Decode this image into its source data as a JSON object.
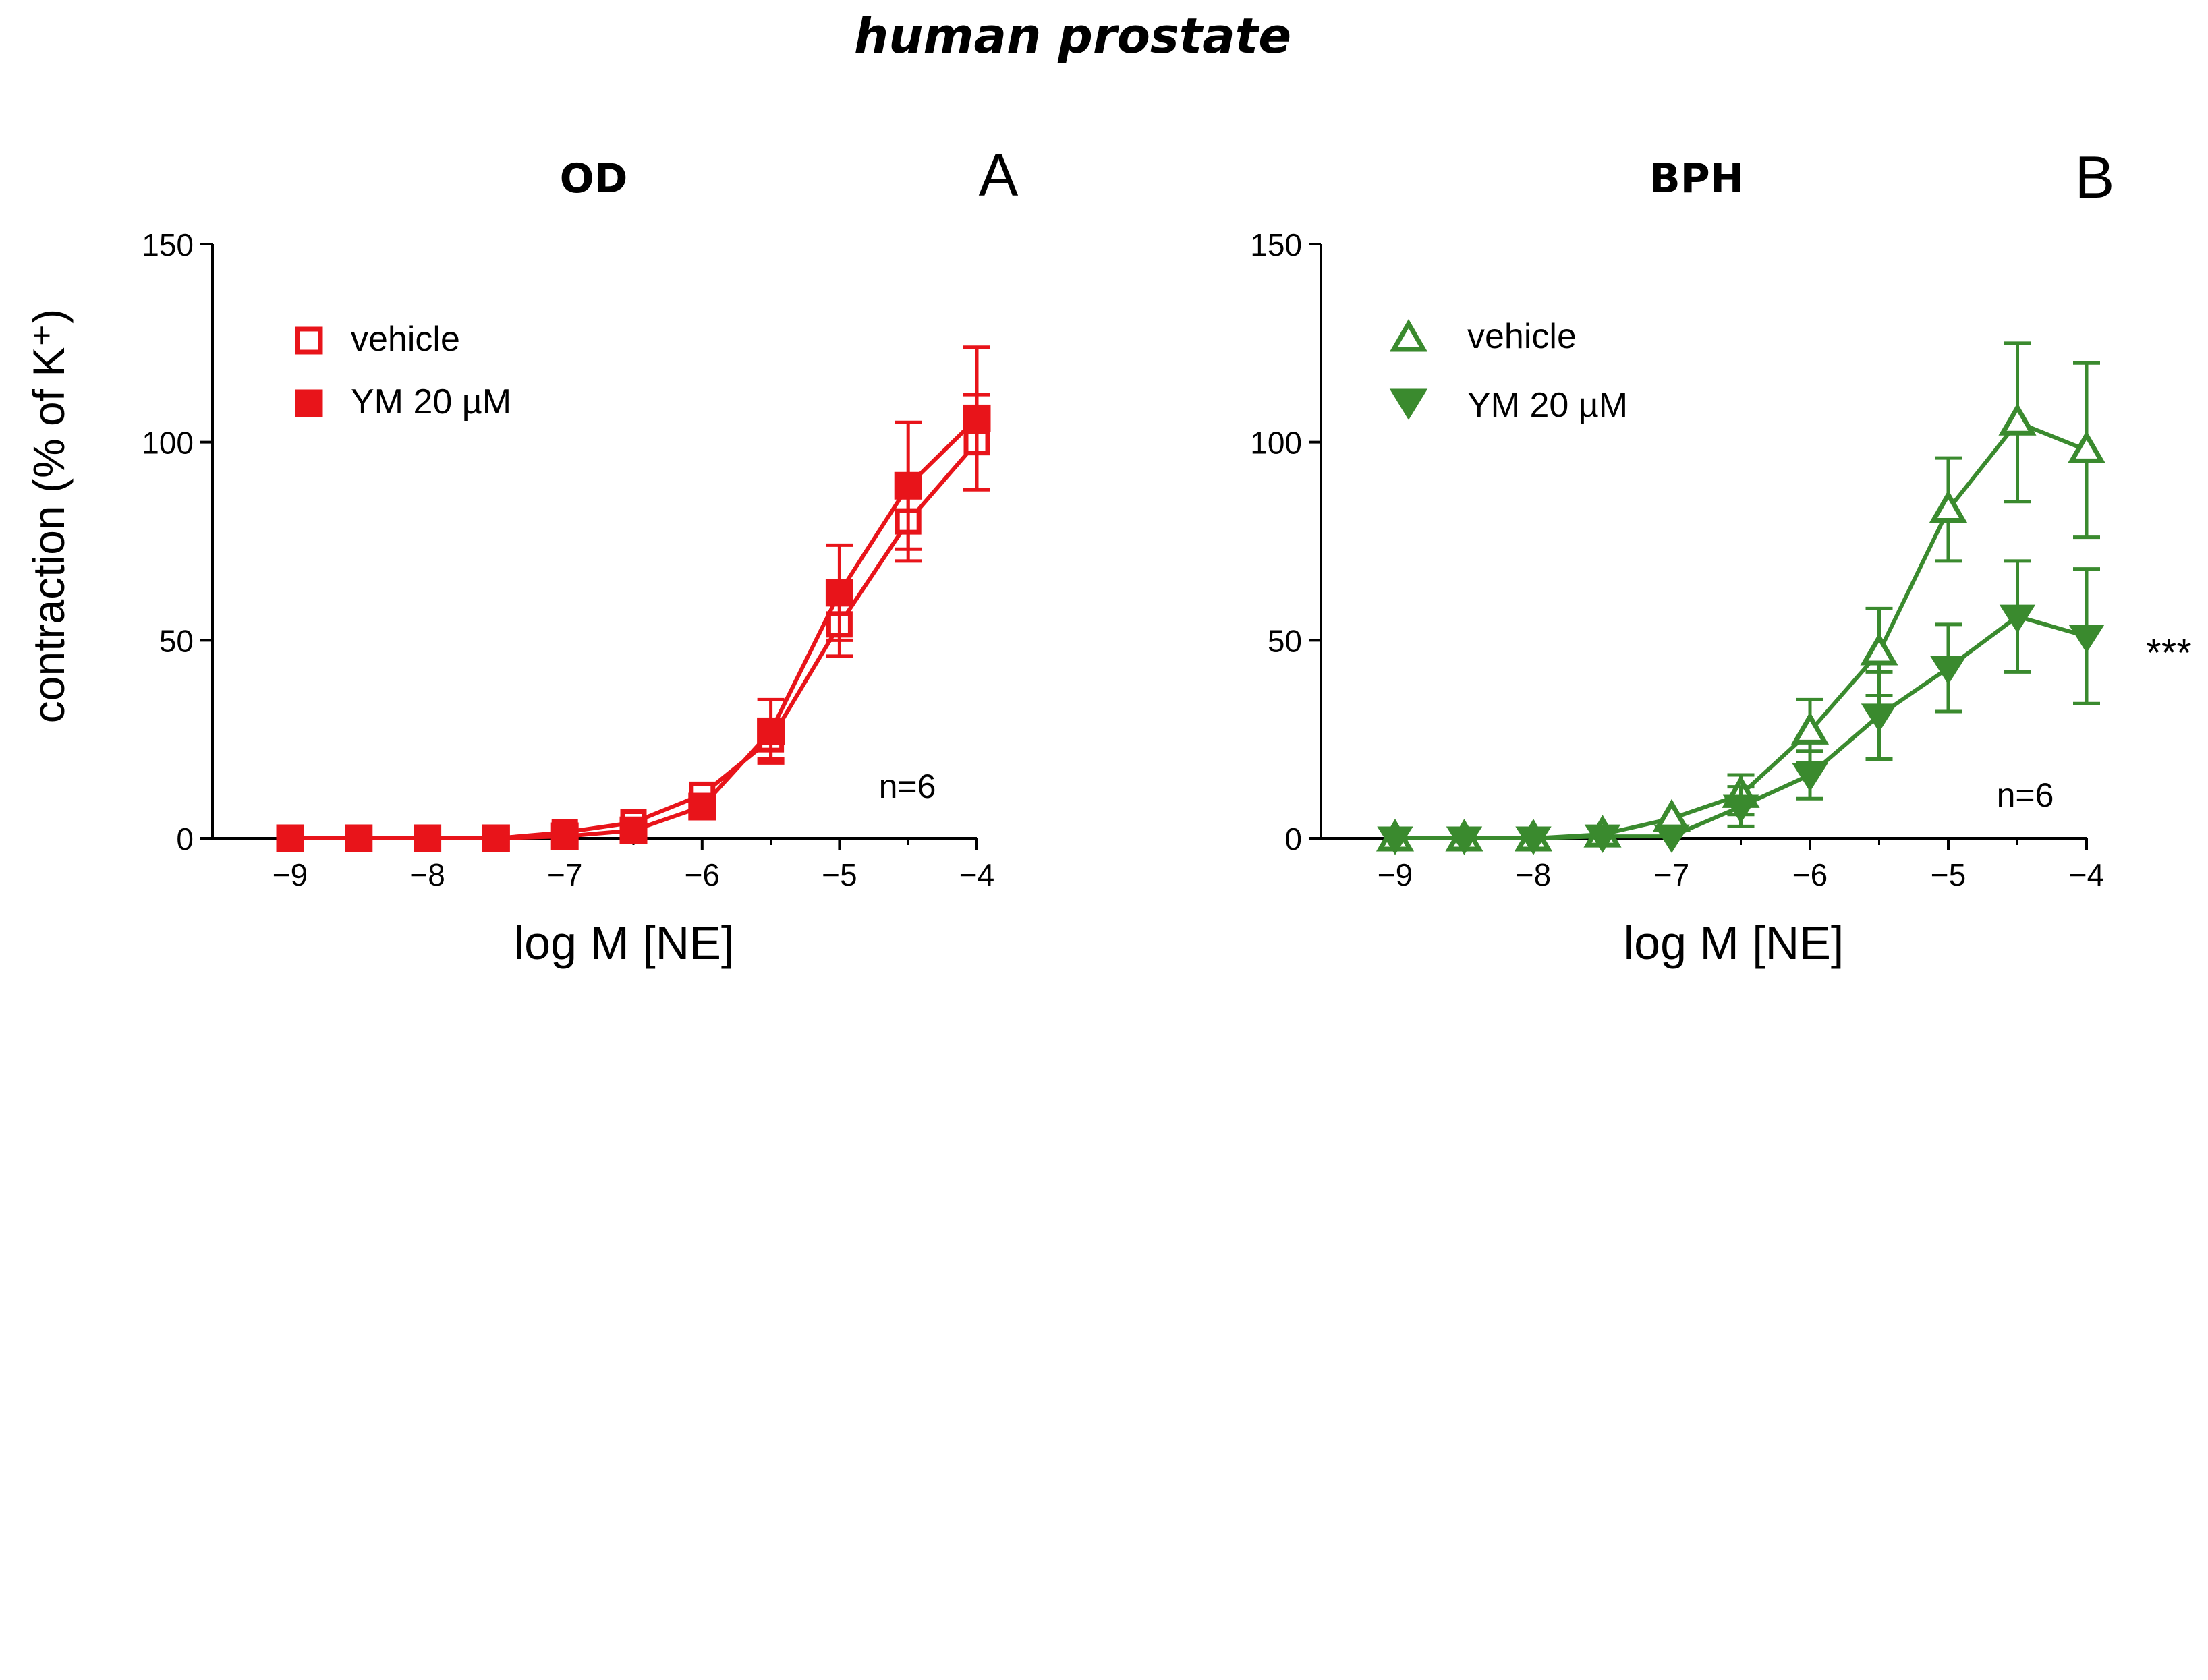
{
  "figure": {
    "title": "human prostate"
  },
  "colors": {
    "red": "#e8141a",
    "green": "#3a8a2e",
    "black": "#000000",
    "link": "#000000"
  },
  "chart_data": [
    {
      "id": "A",
      "type": "line",
      "letter": "A",
      "title": "OD",
      "xlabel": "log M [NE]",
      "ylabel": "contraction (% of K⁺)",
      "xlim": [
        -9.5,
        -4
      ],
      "ylim": [
        0,
        150
      ],
      "xticks": [
        -9,
        -8,
        -7,
        -6,
        -5,
        -4
      ],
      "yticks": [
        0,
        50,
        100,
        150
      ],
      "xtick_labels": [
        "−9",
        "−8",
        "−7",
        "−6",
        "−5",
        "−4"
      ],
      "ytick_labels": [
        "0",
        "50",
        "100",
        "150"
      ],
      "annotation": "n=6",
      "color": "#e8141a",
      "legend_position": "top-left",
      "series": [
        {
          "name": "vehicle",
          "marker": "square-open",
          "x": [
            -9,
            -8.5,
            -8,
            -7.5,
            -7,
            -6.5,
            -6,
            -5.5,
            -5,
            -4.5,
            -4
          ],
          "y": [
            0,
            0,
            0,
            0,
            1.5,
            4,
            11,
            25,
            54,
            80,
            100
          ],
          "err": [
            0,
            0,
            0,
            0,
            0,
            0,
            0,
            5,
            8,
            10,
            12
          ]
        },
        {
          "name": "YM 20 µM",
          "marker": "square-filled",
          "x": [
            -9,
            -8.5,
            -8,
            -7.5,
            -7,
            -6.5,
            -6,
            -5.5,
            -5,
            -4.5,
            -4
          ],
          "y": [
            0,
            0,
            0,
            0,
            0.5,
            2,
            8,
            27,
            62,
            89,
            106
          ],
          "err": [
            0,
            0,
            0,
            0,
            0,
            0,
            0,
            8,
            12,
            16,
            18
          ]
        }
      ]
    },
    {
      "id": "B",
      "type": "line",
      "letter": "B",
      "title": "BPH",
      "xlabel": "log M [NE]",
      "ylabel": "",
      "xlim": [
        -9.5,
        -4
      ],
      "ylim": [
        0,
        150
      ],
      "xticks": [
        -9,
        -8,
        -7,
        -6,
        -5,
        -4
      ],
      "yticks": [
        0,
        50,
        100,
        150
      ],
      "xtick_labels": [
        "−9",
        "−8",
        "−7",
        "−6",
        "−5",
        "−4"
      ],
      "ytick_labels": [
        "0",
        "50",
        "100",
        "150"
      ],
      "annotation": "n=6",
      "significance": "***",
      "color": "#3a8a2e",
      "legend_position": "top-left",
      "series": [
        {
          "name": "vehicle",
          "marker": "triangle-up-open",
          "x": [
            -9,
            -8.5,
            -8,
            -7.5,
            -7,
            -6.5,
            -6,
            -5.5,
            -5,
            -4.5,
            -4
          ],
          "y": [
            0,
            0,
            0,
            1,
            5,
            11,
            27,
            47,
            83,
            105,
            98
          ],
          "err": [
            0,
            0,
            0,
            0,
            0,
            5,
            8,
            11,
            13,
            20,
            22
          ]
        },
        {
          "name": "YM 20 µM",
          "marker": "triangle-down-filled",
          "x": [
            -9,
            -8.5,
            -8,
            -7.5,
            -7,
            -6.5,
            -6,
            -5.5,
            -5,
            -4.5,
            -4
          ],
          "y": [
            0,
            0,
            0,
            0.5,
            0.5,
            8,
            16,
            31,
            43,
            56,
            51
          ],
          "err": [
            0,
            0,
            0,
            0,
            0,
            5,
            6,
            11,
            11,
            14,
            17
          ]
        }
      ]
    }
  ]
}
